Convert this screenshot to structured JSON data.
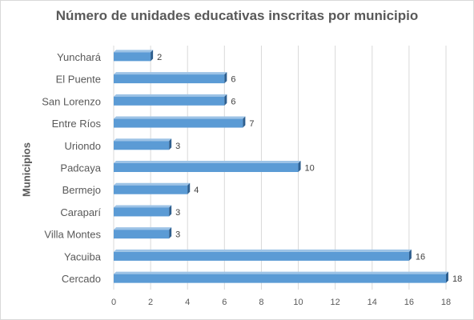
{
  "chart_data": {
    "type": "bar",
    "orientation": "horizontal",
    "title": "Número de unidades educativas inscritas por municipio",
    "ylabel": "Municipios",
    "xlabel": "",
    "categories": [
      "Yunchará",
      "El Puente",
      "San Lorenzo",
      "Entre Ríos",
      "Uriondo",
      "Padcaya",
      "Bermejo",
      "Caraparí",
      "Villa Montes",
      "Yacuiba",
      "Cercado"
    ],
    "values": [
      2,
      6,
      6,
      7,
      3,
      10,
      4,
      3,
      3,
      16,
      18
    ],
    "xlim": [
      0,
      18
    ],
    "xticks": [
      "0",
      "2",
      "4",
      "6",
      "8",
      "10",
      "12",
      "14",
      "16",
      "18"
    ],
    "grid": true,
    "data_labels": true,
    "legend": "none",
    "colors": {
      "bar": "#5b9bd5",
      "bar_side": "#2e5f8f",
      "grid": "#d9d9d9",
      "text": "#595959",
      "label": "#404040"
    }
  }
}
